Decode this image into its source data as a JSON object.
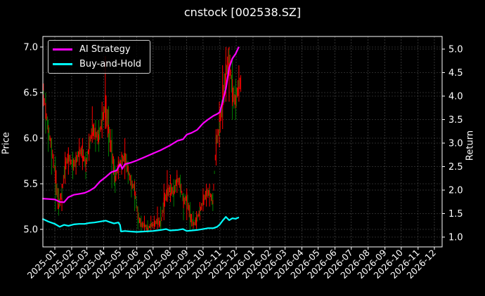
{
  "title": "cnstock [002538.SZ]",
  "legend": {
    "items": [
      {
        "label": "AI Strategy",
        "color": "#ff00ff"
      },
      {
        "label": "Buy-and-Hold",
        "color": "#00ffff"
      }
    ]
  },
  "axes": {
    "left_label": "Price",
    "right_label": "Return",
    "left_ticks": [
      "5.0",
      "5.5",
      "6.0",
      "6.5",
      "7.0"
    ],
    "right_ticks": [
      "1.0",
      "1.5",
      "2.0",
      "2.5",
      "3.0",
      "3.5",
      "4.0",
      "4.5",
      "5.0"
    ],
    "x_ticks": [
      "2025-01",
      "2025-02",
      "2025-03",
      "2025-04",
      "2025-05",
      "2025-06",
      "2025-07",
      "2025-08",
      "2025-09",
      "2025-10",
      "2025-11",
      "2025-12",
      "2026-01",
      "2026-02",
      "2026-03",
      "2026-04",
      "2026-05",
      "2026-06",
      "2026-07",
      "2026-08",
      "2026-09",
      "2026-10",
      "2026-11",
      "2026-12"
    ]
  },
  "colors": {
    "background": "#000000",
    "grid": "#555555",
    "axis": "#ffffff",
    "candle_up": "#ff0000",
    "candle_down": "#008000",
    "ai_strategy": "#ff00ff",
    "buy_and_hold": "#00ffff"
  },
  "chart_data": {
    "type": "line",
    "title": "cnstock [002538.SZ]",
    "xlabel": "",
    "ylabel": "Price",
    "y2label": "Return",
    "ylim": [
      4.82,
      7.12
    ],
    "y2lim": [
      0.8,
      5.25
    ],
    "xlim": [
      "2024-12-09",
      "2026-12-20"
    ],
    "grid": true,
    "legend_position": "upper left",
    "x_tick_labels": [
      "2025-01",
      "2025-02",
      "2025-03",
      "2025-04",
      "2025-05",
      "2025-06",
      "2025-07",
      "2025-08",
      "2025-09",
      "2025-10",
      "2025-11",
      "2025-12",
      "2026-01",
      "2026-02",
      "2026-03",
      "2026-04",
      "2026-05",
      "2026-06",
      "2026-07",
      "2026-08",
      "2026-09",
      "2026-10",
      "2026-11",
      "2026-12"
    ],
    "price_series": {
      "name": "Price (candlestick, red=up, green=down)",
      "axis": "left",
      "x": [
        "2024-12-11",
        "2024-12-15",
        "2024-12-20",
        "2024-12-26",
        "2025-01-02",
        "2025-01-08",
        "2025-01-14",
        "2025-01-20",
        "2025-01-26",
        "2025-02-03",
        "2025-02-09",
        "2025-02-15",
        "2025-02-21",
        "2025-02-27",
        "2025-03-05",
        "2025-03-11",
        "2025-03-17",
        "2025-03-23",
        "2025-03-29",
        "2025-04-04",
        "2025-04-10",
        "2025-04-16",
        "2025-04-22",
        "2025-04-28",
        "2025-05-04",
        "2025-05-10",
        "2025-05-16",
        "2025-05-22",
        "2025-05-28",
        "2025-06-03",
        "2025-06-09",
        "2025-06-15",
        "2025-06-21",
        "2025-06-27",
        "2025-07-03",
        "2025-07-09",
        "2025-07-15",
        "2025-07-21",
        "2025-07-27",
        "2025-08-02",
        "2025-08-08",
        "2025-08-14",
        "2025-08-20",
        "2025-08-26",
        "2025-09-01",
        "2025-09-07",
        "2025-09-13",
        "2025-09-19",
        "2025-09-25",
        "2025-10-01",
        "2025-10-07",
        "2025-10-13",
        "2025-10-19",
        "2025-10-25",
        "2025-10-31",
        "2025-11-06",
        "2025-11-12",
        "2025-11-18",
        "2025-11-24",
        "2025-11-30",
        "2025-12-06"
      ],
      "values": [
        6.5,
        6.3,
        6.1,
        5.9,
        5.6,
        5.25,
        5.4,
        5.7,
        5.8,
        5.7,
        5.75,
        5.85,
        5.85,
        5.7,
        5.9,
        6.1,
        6.05,
        6.0,
        6.2,
        6.35,
        6.1,
        5.85,
        5.55,
        5.7,
        5.75,
        5.8,
        5.65,
        5.5,
        5.45,
        5.15,
        5.05,
        5.05,
        5.0,
        5.05,
        5.05,
        5.1,
        5.05,
        5.3,
        5.4,
        5.45,
        5.4,
        5.55,
        5.5,
        5.3,
        5.35,
        5.15,
        5.05,
        5.1,
        5.2,
        5.3,
        5.4,
        5.4,
        5.3,
        5.95,
        6.1,
        6.4,
        6.7,
        6.9,
        6.5,
        6.4,
        6.6
      ],
      "lows": [
        6.35,
        6.05,
        5.85,
        5.6,
        5.2,
        5.15,
        5.2,
        5.5,
        5.6,
        5.55,
        5.6,
        5.7,
        5.65,
        5.55,
        5.75,
        5.95,
        5.85,
        5.85,
        6.0,
        6.1,
        5.8,
        5.45,
        5.4,
        5.55,
        5.6,
        5.55,
        5.5,
        5.35,
        5.2,
        5.0,
        4.98,
        4.98,
        4.96,
        4.98,
        5.0,
        5.0,
        5.0,
        5.1,
        5.3,
        5.3,
        5.25,
        5.4,
        5.35,
        5.1,
        5.1,
        5.0,
        5.0,
        5.0,
        5.1,
        5.2,
        5.25,
        5.25,
        5.2,
        5.7,
        5.9,
        6.1,
        6.4,
        6.4,
        6.2,
        6.2,
        6.4
      ],
      "highs": [
        6.6,
        6.5,
        6.2,
        6.0,
        5.8,
        5.45,
        5.5,
        5.85,
        5.9,
        5.85,
        5.85,
        6.0,
        6.0,
        5.85,
        6.05,
        6.35,
        6.2,
        6.2,
        6.4,
        6.9,
        6.35,
        6.1,
        5.7,
        5.8,
        5.85,
        6.0,
        5.75,
        5.6,
        5.55,
        5.25,
        5.15,
        5.15,
        5.1,
        5.15,
        5.15,
        5.25,
        5.25,
        5.5,
        5.65,
        5.6,
        5.55,
        5.65,
        5.6,
        5.4,
        5.45,
        5.3,
        5.2,
        5.2,
        5.3,
        5.45,
        5.5,
        5.5,
        5.4,
        6.1,
        6.4,
        6.8,
        7.0,
        7.0,
        6.85,
        6.65,
        6.8
      ]
    },
    "series": [
      {
        "name": "AI Strategy",
        "axis": "right",
        "color": "#ff00ff",
        "x": [
          "2024-12-09",
          "2024-12-20",
          "2025-01-01",
          "2025-01-10",
          "2025-01-18",
          "2025-01-26",
          "2025-02-05",
          "2025-02-15",
          "2025-02-25",
          "2025-03-05",
          "2025-03-15",
          "2025-03-25",
          "2025-04-05",
          "2025-04-15",
          "2025-04-25",
          "2025-05-01",
          "2025-05-03",
          "2025-05-05",
          "2025-05-10",
          "2025-05-20",
          "2025-06-01",
          "2025-06-15",
          "2025-07-01",
          "2025-07-15",
          "2025-08-01",
          "2025-08-15",
          "2025-08-25",
          "2025-09-01",
          "2025-09-10",
          "2025-09-20",
          "2025-10-01",
          "2025-10-10",
          "2025-10-20",
          "2025-10-27",
          "2025-11-01",
          "2025-11-06",
          "2025-11-12",
          "2025-11-18",
          "2025-11-24",
          "2025-11-30",
          "2025-12-06"
        ],
        "values": [
          1.82,
          1.81,
          1.8,
          1.75,
          1.74,
          1.85,
          1.9,
          1.92,
          1.94,
          1.98,
          2.05,
          2.18,
          2.28,
          2.38,
          2.42,
          2.55,
          2.52,
          2.45,
          2.55,
          2.58,
          2.63,
          2.7,
          2.78,
          2.85,
          2.95,
          3.05,
          3.08,
          3.18,
          3.22,
          3.28,
          3.42,
          3.5,
          3.58,
          3.62,
          3.66,
          3.88,
          4.15,
          4.6,
          4.8,
          4.9,
          5.05
        ]
      },
      {
        "name": "Buy-and-Hold",
        "axis": "right",
        "color": "#00ffff",
        "x": [
          "2024-12-09",
          "2024-12-20",
          "2025-01-01",
          "2025-01-10",
          "2025-01-18",
          "2025-01-26",
          "2025-02-05",
          "2025-02-15",
          "2025-02-25",
          "2025-03-05",
          "2025-03-15",
          "2025-03-25",
          "2025-04-05",
          "2025-04-12",
          "2025-04-20",
          "2025-04-28",
          "2025-05-01",
          "2025-05-03",
          "2025-05-10",
          "2025-05-20",
          "2025-06-01",
          "2025-06-15",
          "2025-07-01",
          "2025-07-15",
          "2025-07-25",
          "2025-08-01",
          "2025-08-15",
          "2025-08-25",
          "2025-09-01",
          "2025-09-10",
          "2025-09-20",
          "2025-10-01",
          "2025-10-10",
          "2025-10-20",
          "2025-10-27",
          "2025-11-01",
          "2025-11-06",
          "2025-11-12",
          "2025-11-18",
          "2025-11-24",
          "2025-11-30",
          "2025-12-06"
        ],
        "values": [
          1.39,
          1.33,
          1.28,
          1.22,
          1.26,
          1.24,
          1.27,
          1.28,
          1.28,
          1.3,
          1.31,
          1.33,
          1.35,
          1.32,
          1.29,
          1.31,
          1.26,
          1.12,
          1.13,
          1.12,
          1.11,
          1.12,
          1.13,
          1.15,
          1.17,
          1.14,
          1.15,
          1.17,
          1.13,
          1.14,
          1.15,
          1.17,
          1.19,
          1.19,
          1.22,
          1.27,
          1.35,
          1.43,
          1.36,
          1.4,
          1.39,
          1.42
        ]
      }
    ]
  }
}
